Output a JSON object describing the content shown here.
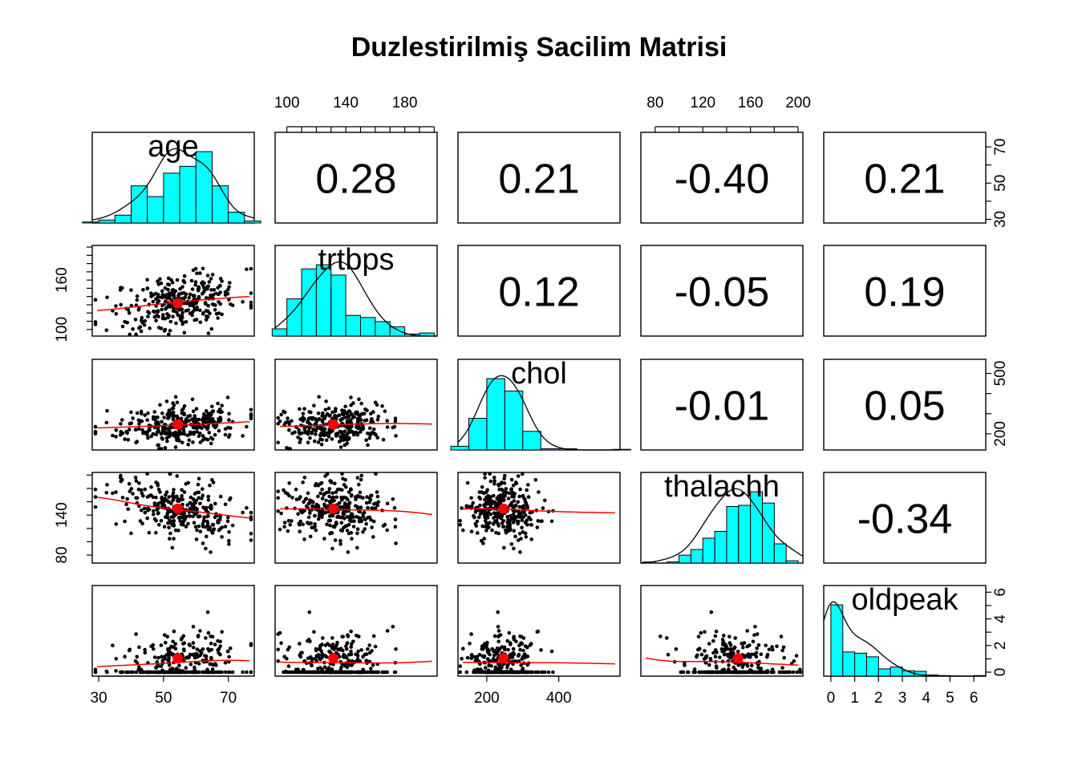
{
  "chart_data": {
    "type": "scatter",
    "title": "Duzlestirilmiş Sacilim Matrisi",
    "variables": [
      "age",
      "trtbps",
      "chol",
      "thalachh",
      "oldpeak"
    ],
    "ranges": [
      [
        28,
        78
      ],
      [
        92,
        202
      ],
      [
        120,
        570
      ],
      [
        68,
        204
      ],
      [
        -0.3,
        6.5
      ]
    ],
    "tick_values": [
      [
        30,
        50,
        70
      ],
      [
        100,
        140,
        180
      ],
      [
        200,
        400
      ],
      [
        80,
        120,
        160,
        200
      ],
      [
        0,
        1,
        2,
        3,
        4,
        5,
        6
      ]
    ],
    "tick_labels": [
      [
        "30",
        "50",
        "70"
      ],
      [
        "100",
        "140",
        "180"
      ],
      [
        "200",
        "400"
      ],
      [
        "80",
        "120",
        "160",
        "200"
      ],
      [
        "0",
        "1",
        "2",
        "3",
        "4",
        "5",
        "6"
      ]
    ],
    "left_axis_ticks": {
      "trtbps": [
        "100",
        "160"
      ],
      "thalachh": [
        "80",
        "140"
      ]
    },
    "right_axis_ticks": {
      "age": [
        "30",
        "50",
        "70"
      ],
      "chol": [
        "200",
        "500"
      ],
      "oldpeak": [
        "0",
        "2",
        "4",
        "6"
      ]
    },
    "correlations": [
      {
        "row": 0,
        "col": 1,
        "value": "0.28"
      },
      {
        "row": 0,
        "col": 2,
        "value": "0.21"
      },
      {
        "row": 0,
        "col": 3,
        "value": "-0.40"
      },
      {
        "row": 0,
        "col": 4,
        "value": "0.21"
      },
      {
        "row": 1,
        "col": 2,
        "value": "0.12"
      },
      {
        "row": 1,
        "col": 3,
        "value": "-0.05"
      },
      {
        "row": 1,
        "col": 4,
        "value": "0.19"
      },
      {
        "row": 2,
        "col": 3,
        "value": "-0.01"
      },
      {
        "row": 2,
        "col": 4,
        "value": "0.05"
      },
      {
        "row": 3,
        "col": 4,
        "value": "-0.34"
      }
    ],
    "means": [
      54.4,
      131.6,
      246.3,
      149.6,
      1.04
    ],
    "histograms": [
      {
        "breaks": [
          25,
          30,
          35,
          40,
          45,
          50,
          55,
          60,
          65,
          70,
          75,
          80
        ],
        "counts": [
          1,
          3,
          8,
          38,
          27,
          51,
          58,
          73,
          38,
          11,
          2
        ]
      },
      {
        "breaks": [
          90,
          100,
          110,
          120,
          130,
          140,
          150,
          160,
          170,
          180,
          190,
          200
        ],
        "counts": [
          7,
          36,
          65,
          69,
          59,
          20,
          18,
          14,
          9,
          2,
          3
        ]
      },
      {
        "breaks": [
          100,
          150,
          200,
          250,
          300,
          350,
          400,
          450,
          500,
          550,
          600
        ],
        "counts": [
          6,
          51,
          115,
          95,
          30,
          2,
          2,
          0,
          0,
          1
        ]
      },
      {
        "breaks": [
          70,
          80,
          90,
          100,
          110,
          120,
          130,
          140,
          150,
          160,
          170,
          180,
          190,
          200,
          210
        ],
        "counts": [
          1,
          0,
          1,
          7,
          12,
          22,
          28,
          50,
          51,
          63,
          53,
          17,
          2,
          0
        ]
      },
      {
        "breaks": [
          0,
          0.5,
          1,
          1.5,
          2,
          2.5,
          3,
          3.5,
          4,
          4.5,
          5,
          5.5,
          6,
          6.5
        ],
        "counts": [
          118,
          40,
          38,
          32,
          12,
          15,
          9,
          8,
          2,
          1,
          0,
          0,
          1
        ]
      }
    ],
    "colors": {
      "histogram_fill": "#00ffff",
      "smooth_line": "#ff0000",
      "mean_point": "#ff0000",
      "points": "#000000",
      "density_line": "#000000"
    }
  }
}
